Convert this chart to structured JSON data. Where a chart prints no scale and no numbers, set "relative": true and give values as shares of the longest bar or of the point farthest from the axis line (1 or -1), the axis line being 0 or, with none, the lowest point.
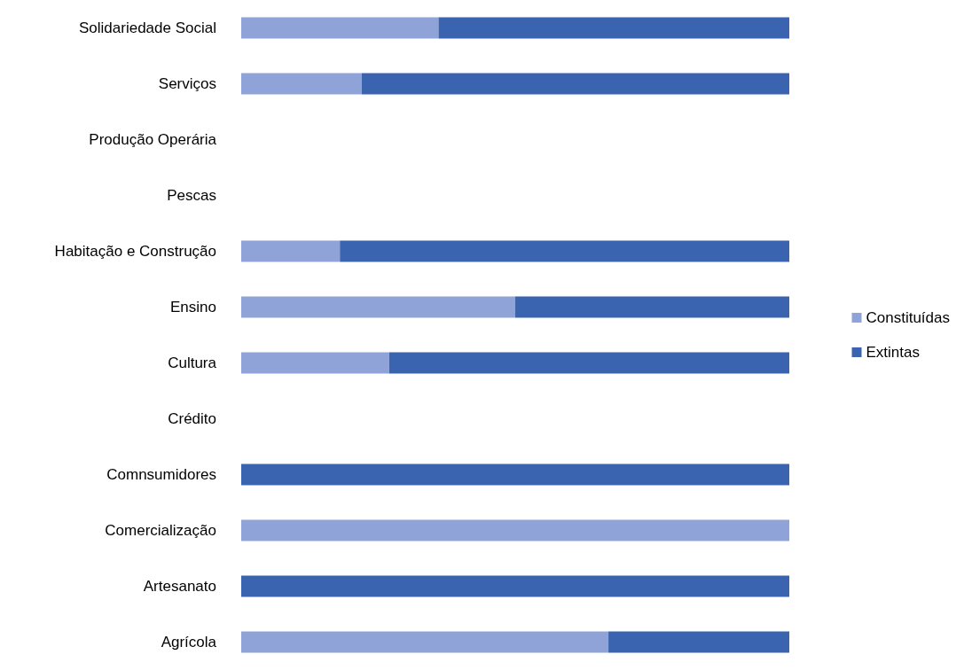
{
  "chart_data": {
    "type": "bar",
    "orientation": "horizontal",
    "stacked": true,
    "relative": true,
    "categories": [
      "Solidariedade Social",
      "Serviços",
      "Produção Operária",
      "Pescas",
      "Habitação e Construção",
      "Ensino",
      "Cultura",
      "Crédito",
      "Comnsumidores",
      "Comercialização",
      "Artesanato",
      "Agrícola"
    ],
    "series": [
      {
        "name": "Constituídas",
        "color": "#8fa3d8",
        "values": [
          0.36,
          0.22,
          0,
          0,
          0.18,
          0.5,
          0.27,
          0,
          0,
          1,
          0,
          0.67
        ]
      },
      {
        "name": "Extintas",
        "color": "#3a64b0",
        "values": [
          0.64,
          0.78,
          0,
          0,
          0.82,
          0.5,
          0.73,
          0,
          1,
          0,
          1,
          0.33
        ]
      }
    ],
    "legend": "right"
  }
}
